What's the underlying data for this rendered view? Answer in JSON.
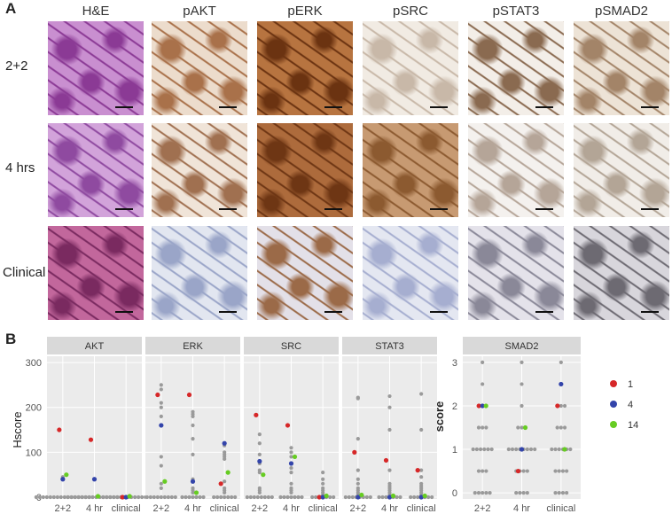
{
  "panel_a": {
    "letter": "A",
    "columns": [
      "H&E",
      "pAKT",
      "pERK",
      "pSRC",
      "pSTAT3",
      "pSMAD2"
    ],
    "rows": [
      "2+2",
      "4 hrs",
      "Clinical"
    ],
    "tile_colors": [
      [
        [
          "#8b3a95",
          "#c98fd0"
        ],
        [
          "#a9714a",
          "#ecdccc"
        ],
        [
          "#6b3311",
          "#b77440"
        ],
        [
          "#c8b8a8",
          "#f1ebe3"
        ],
        [
          "#8a6a50",
          "#f3eee8"
        ],
        [
          "#a38468",
          "#ede3d6"
        ]
      ],
      [
        [
          "#8f4aa0",
          "#d2a3da"
        ],
        [
          "#a07050",
          "#f0e4d8"
        ],
        [
          "#6e3614",
          "#ad6b3c"
        ],
        [
          "#8c5a30",
          "#c79a72"
        ],
        [
          "#b5a598",
          "#f4f1ee"
        ],
        [
          "#b3a596",
          "#f1ede8"
        ]
      ],
      [
        [
          "#7a2a60",
          "#c2679c"
        ],
        [
          "#9aa5c8",
          "#e2e6f0"
        ],
        [
          "#9b6a48",
          "#e3e0e8"
        ],
        [
          "#a6aed0",
          "#e4e7f1"
        ],
        [
          "#8a8898",
          "#e4e2ea"
        ],
        [
          "#6d6a72",
          "#d8d6dc"
        ]
      ]
    ]
  },
  "panel_b": {
    "letter": "B",
    "ylabel": "Hscore",
    "facets": [
      "AKT",
      "ERK",
      "SRC",
      "STAT3"
    ],
    "x_categories": [
      "2+2",
      "4 hr",
      "clinical"
    ],
    "y_ticks": [
      "0",
      "100",
      "200",
      "300"
    ],
    "smad2": {
      "title": "SMAD2",
      "ylabel": "score",
      "y_ticks": [
        "0",
        "1",
        "2",
        "3"
      ],
      "x_categories": [
        "2+2",
        "4 hr",
        "clinical"
      ]
    },
    "legend": {
      "entries": [
        {
          "label": "1",
          "color": "#d62728"
        },
        {
          "label": "4",
          "color": "#3344aa"
        },
        {
          "label": "14",
          "color": "#66cc22"
        }
      ]
    }
  },
  "chart_data": [
    {
      "type": "scatter",
      "title": "AKT",
      "ylabel": "Hscore",
      "ylim": [
        0,
        310
      ],
      "categories": [
        "2+2",
        "4 hr",
        "clinical"
      ],
      "series": [
        {
          "name": "1",
          "color": "#d62728",
          "values": [
            150,
            128,
            0
          ]
        },
        {
          "name": "4",
          "color": "#3344aa",
          "values": [
            40,
            40,
            0
          ]
        },
        {
          "name": "14",
          "color": "#66cc22",
          "values": [
            50,
            2,
            2
          ]
        }
      ],
      "gray": [
        [
          0,
          0,
          0,
          0,
          0,
          0,
          0,
          0,
          0,
          0,
          0,
          0,
          0,
          0,
          0,
          0,
          45
        ],
        [
          0,
          0,
          0,
          0,
          0,
          0,
          0,
          0,
          0,
          0,
          0,
          0,
          0,
          0,
          0,
          0
        ],
        [
          0,
          0,
          0,
          0,
          0,
          0,
          0,
          0,
          0,
          0,
          0,
          0,
          0,
          0
        ]
      ]
    },
    {
      "type": "scatter",
      "title": "ERK",
      "ylabel": "Hscore",
      "ylim": [
        0,
        310
      ],
      "categories": [
        "2+2",
        "4 hr",
        "clinical"
      ],
      "series": [
        {
          "name": "1",
          "color": "#d62728",
          "values": [
            228,
            228,
            30
          ]
        },
        {
          "name": "4",
          "color": "#3344aa",
          "values": [
            160,
            35,
            120
          ]
        },
        {
          "name": "14",
          "color": "#66cc22",
          "values": [
            35,
            10,
            55
          ]
        }
      ],
      "gray": [
        [
          250,
          240,
          210,
          200,
          180,
          90,
          70,
          30,
          20,
          0,
          0,
          0,
          0,
          0,
          0,
          0,
          0,
          0
        ],
        [
          190,
          185,
          180,
          160,
          130,
          95,
          40,
          20,
          15,
          10,
          0,
          0,
          0,
          0,
          0,
          0,
          0
        ],
        [
          115,
          100,
          95,
          90,
          85,
          35,
          20,
          15,
          10,
          0,
          0,
          0,
          0,
          0,
          0,
          0
        ]
      ]
    },
    {
      "type": "scatter",
      "title": "SRC",
      "ylabel": "Hscore",
      "ylim": [
        0,
        310
      ],
      "categories": [
        "2+2",
        "4 hr",
        "clinical"
      ],
      "series": [
        {
          "name": "1",
          "color": "#d62728",
          "values": [
            183,
            160,
            0
          ]
        },
        {
          "name": "4",
          "color": "#3344aa",
          "values": [
            80,
            75,
            0
          ]
        },
        {
          "name": "14",
          "color": "#66cc22",
          "values": [
            50,
            90,
            3
          ]
        }
      ],
      "gray": [
        [
          140,
          120,
          95,
          75,
          60,
          55,
          20,
          15,
          10,
          0,
          0,
          0,
          0,
          0,
          0,
          0,
          0
        ],
        [
          110,
          100,
          90,
          65,
          55,
          30,
          20,
          15,
          10,
          0,
          0,
          0,
          0,
          0,
          0,
          0
        ],
        [
          55,
          40,
          30,
          20,
          15,
          10,
          5,
          0,
          0,
          0,
          0,
          0,
          0,
          0
        ]
      ]
    },
    {
      "type": "scatter",
      "title": "STAT3",
      "ylabel": "Hscore",
      "ylim": [
        0,
        310
      ],
      "categories": [
        "2+2",
        "4 hr",
        "clinical"
      ],
      "series": [
        {
          "name": "1",
          "color": "#d62728",
          "values": [
            100,
            82,
            60
          ]
        },
        {
          "name": "4",
          "color": "#3344aa",
          "values": [
            0,
            0,
            0
          ]
        },
        {
          "name": "14",
          "color": "#66cc22",
          "values": [
            5,
            3,
            3
          ]
        }
      ],
      "gray": [
        [
          222,
          220,
          130,
          60,
          40,
          30,
          20,
          15,
          10,
          5,
          0,
          0,
          0,
          0,
          0,
          0,
          0,
          0
        ],
        [
          225,
          200,
          150,
          60,
          30,
          25,
          20,
          15,
          10,
          5,
          0,
          0,
          0,
          0,
          0,
          0,
          0
        ],
        [
          230,
          150,
          60,
          45,
          30,
          25,
          20,
          15,
          10,
          5,
          0,
          0,
          0,
          0,
          0,
          0,
          0
        ]
      ]
    },
    {
      "type": "scatter",
      "title": "SMAD2",
      "ylabel": "score",
      "ylim": [
        -0.1,
        3.1
      ],
      "categories": [
        "2+2",
        "4 hr",
        "clinical"
      ],
      "series": [
        {
          "name": "1",
          "color": "#d62728",
          "values": [
            2,
            0.5,
            2
          ]
        },
        {
          "name": "4",
          "color": "#3344aa",
          "values": [
            2,
            1,
            2.5
          ]
        },
        {
          "name": "14",
          "color": "#66cc22",
          "values": [
            2,
            1.5,
            1
          ]
        }
      ],
      "gray": [
        [
          3,
          2.5,
          2,
          2,
          2,
          1.5,
          1.5,
          1.5,
          1,
          1,
          1,
          1,
          1,
          1,
          0.5,
          0.5,
          0.5,
          0,
          0,
          0,
          0,
          0
        ],
        [
          3,
          2.5,
          2,
          1.5,
          1.5,
          1.5,
          1,
          1,
          1,
          1,
          1,
          1,
          1,
          1,
          0.5,
          0.5,
          0.5,
          0.5,
          0,
          0,
          0,
          0
        ],
        [
          3,
          2.5,
          2,
          2,
          2,
          1.5,
          1.5,
          1.5,
          1,
          1,
          1,
          1,
          1,
          1,
          0.5,
          0.5,
          0.5,
          0.5,
          0,
          0,
          0,
          0
        ]
      ]
    }
  ]
}
